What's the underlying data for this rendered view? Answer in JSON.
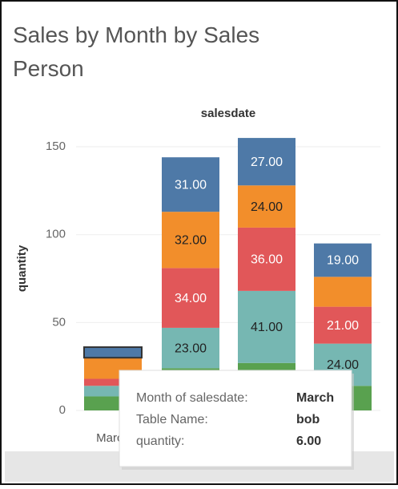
{
  "chart_data": {
    "type": "stacked_bar",
    "title": "Sales by Month by Sales Person",
    "column_header": "salesdate",
    "y_label": "quantity",
    "categories": [
      "March",
      null,
      null,
      null
    ],
    "ylim": [
      0,
      155
    ],
    "yticks": [
      0,
      50,
      100,
      150
    ],
    "grid": true,
    "series": [
      {
        "color": "#59a14f",
        "values": [
          8,
          24,
          27,
          14
        ],
        "value_labels": [
          null,
          null,
          null,
          null
        ]
      },
      {
        "color": "#76b7b2",
        "values": [
          6,
          23,
          41,
          24
        ],
        "value_labels": [
          null,
          "23.00",
          "41.00",
          "24.00"
        ]
      },
      {
        "color": "#e15759",
        "values": [
          4,
          34,
          36,
          21
        ],
        "value_labels": [
          null,
          "34.00",
          "36.00",
          "21.00"
        ]
      },
      {
        "color": "#f28e2b",
        "values": [
          12,
          32,
          24,
          17
        ],
        "value_labels": [
          null,
          "32.00",
          "24.00",
          null
        ]
      },
      {
        "color": "#4e79a7",
        "values": [
          6,
          31,
          27,
          19
        ],
        "value_labels": [
          null,
          "31.00",
          "27.00",
          "19.00"
        ]
      }
    ]
  },
  "tooltip": {
    "rows": [
      [
        "Month of salesdate:",
        "March"
      ],
      [
        "Table Name:",
        "bob"
      ],
      [
        "quantity:",
        "6.00"
      ]
    ]
  }
}
